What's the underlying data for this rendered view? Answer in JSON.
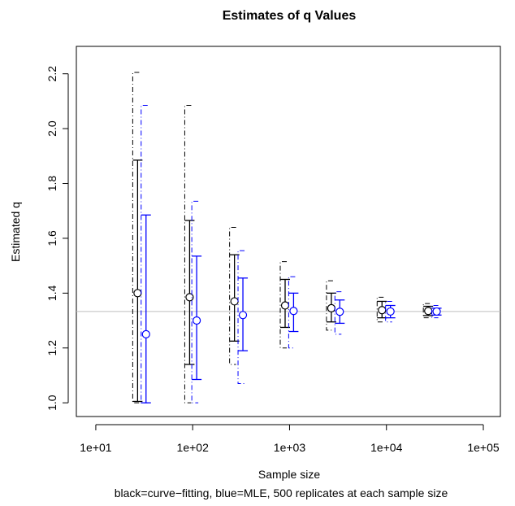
{
  "chart_data": {
    "type": "scatter",
    "title": "Estimates of q Values",
    "xlabel": "Sample size",
    "ylabel": "Estimated q",
    "caption": "black=curve−fitting, blue=MLE, 500 replicates at each sample size",
    "x_scale": "log",
    "xlim": [
      6.3,
      150000
    ],
    "ylim": [
      0.95,
      2.3
    ],
    "x_ticks": [
      10,
      100,
      1000,
      10000,
      100000
    ],
    "x_tick_labels": [
      "1e+01",
      "1e+02",
      "1e+03",
      "1e+04",
      "1e+05"
    ],
    "y_ticks": [
      1.0,
      1.2,
      1.4,
      1.6,
      1.8,
      2.0,
      2.2
    ],
    "y_tick_labels": [
      "1.0",
      "1.2",
      "1.4",
      "1.6",
      "1.8",
      "2.0",
      "2.2"
    ],
    "reference_line": {
      "y": 1.333,
      "color": "#bebebe"
    },
    "grid": false,
    "series": [
      {
        "key": "curve-fitting",
        "color": "#000000",
        "points": [
          {
            "x": 27,
            "y": 1.4,
            "inner": [
              1.005,
              1.885
            ],
            "outer": [
              1.0,
              2.205
            ]
          },
          {
            "x": 93,
            "y": 1.385,
            "inner": [
              1.14,
              1.665
            ],
            "outer": [
              1.0,
              2.085
            ]
          },
          {
            "x": 270,
            "y": 1.37,
            "inner": [
              1.225,
              1.54
            ],
            "outer": [
              1.14,
              1.64
            ]
          },
          {
            "x": 900,
            "y": 1.355,
            "inner": [
              1.275,
              1.45
            ],
            "outer": [
              1.2,
              1.515
            ]
          },
          {
            "x": 2700,
            "y": 1.345,
            "inner": [
              1.295,
              1.4
            ],
            "outer": [
              1.265,
              1.445
            ]
          },
          {
            "x": 9000,
            "y": 1.338,
            "inner": [
              1.31,
              1.37
            ],
            "outer": [
              1.295,
              1.385
            ]
          },
          {
            "x": 27000,
            "y": 1.335,
            "inner": [
              1.318,
              1.352
            ],
            "outer": [
              1.31,
              1.362
            ]
          }
        ]
      },
      {
        "key": "mle",
        "color": "#0000ff",
        "points": [
          {
            "x": 33,
            "y": 1.25,
            "inner": [
              1.0,
              1.685
            ],
            "outer": [
              1.0,
              2.085
            ]
          },
          {
            "x": 110,
            "y": 1.3,
            "inner": [
              1.085,
              1.535
            ],
            "outer": [
              1.0,
              1.735
            ]
          },
          {
            "x": 330,
            "y": 1.32,
            "inner": [
              1.19,
              1.455
            ],
            "outer": [
              1.07,
              1.555
            ]
          },
          {
            "x": 1100,
            "y": 1.335,
            "inner": [
              1.26,
              1.4
            ],
            "outer": [
              1.2,
              1.46
            ]
          },
          {
            "x": 3300,
            "y": 1.332,
            "inner": [
              1.29,
              1.375
            ],
            "outer": [
              1.25,
              1.405
            ]
          },
          {
            "x": 11000,
            "y": 1.333,
            "inner": [
              1.31,
              1.355
            ],
            "outer": [
              1.295,
              1.37
            ]
          },
          {
            "x": 33000,
            "y": 1.333,
            "inner": [
              1.32,
              1.345
            ],
            "outer": [
              1.31,
              1.355
            ]
          }
        ]
      }
    ]
  }
}
